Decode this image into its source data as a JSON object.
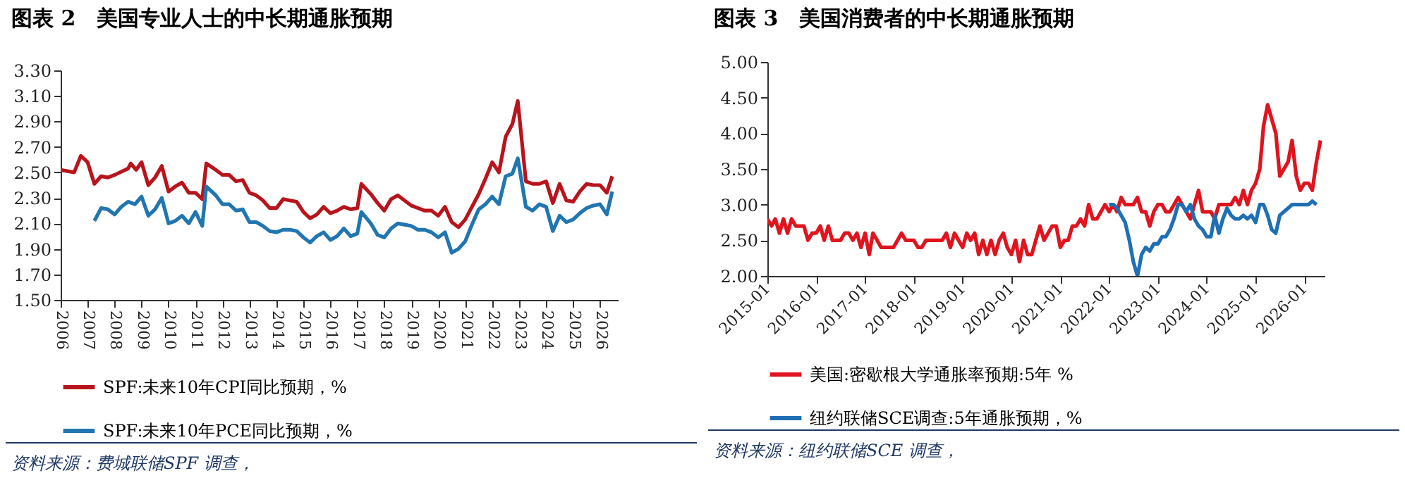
{
  "chart_data": [
    {
      "type": "line",
      "title": "图表 2　美国专业人士的中长期通胀预期",
      "annotations": [
        "资料来源：费城联储SPF 调查，"
      ],
      "legend": "bottom",
      "grid": false,
      "marker": "none",
      "line_style": "solid",
      "xlim": [
        2006,
        2026.66
      ],
      "xticks": [
        2006,
        2007,
        2008,
        2009,
        2010,
        2011,
        2012,
        2013,
        2014,
        2015,
        2016,
        2017,
        2018,
        2019,
        2020,
        2021,
        2022,
        2023,
        2024,
        2025,
        2026
      ],
      "ylim": [
        1.5,
        3.3
      ],
      "yticks": [
        {
          "value": 1.5,
          "label": "1.50"
        },
        {
          "value": 1.7,
          "label": "1.70"
        },
        {
          "value": 1.9,
          "label": "1.90"
        },
        {
          "value": 2.1,
          "label": "2.10"
        },
        {
          "value": 2.3,
          "label": "2.30"
        },
        {
          "value": 2.5,
          "label": "2.50"
        },
        {
          "value": 2.7,
          "label": "2.70"
        },
        {
          "value": 2.9,
          "label": "2.90"
        },
        {
          "value": 3.1,
          "label": "3.10"
        },
        {
          "value": 3.3,
          "label": "3.30"
        }
      ],
      "series": [
        {
          "name": "SPF:未来10年CPI同比预期，%",
          "color": "#b8141c",
          "x": [
            2006,
            2006.5,
            2006.75,
            2007,
            2007.25,
            2007.5,
            2007.75,
            2008,
            2008.5,
            2008.6,
            2008.8,
            2009,
            2009.25,
            2009.5,
            2009.75,
            2010,
            2010.25,
            2010.5,
            2010.75,
            2011,
            2011.25,
            2011.4,
            2011.75,
            2012,
            2012.25,
            2012.5,
            2012.75,
            2013,
            2013.25,
            2013.5,
            2013.75,
            2014,
            2014.25,
            2014.5,
            2014.75,
            2015,
            2015.25,
            2015.5,
            2015.75,
            2016,
            2016.25,
            2016.5,
            2016.75,
            2017,
            2017.15,
            2017.5,
            2017.75,
            2018,
            2018.25,
            2018.5,
            2018.75,
            2019,
            2019.25,
            2019.5,
            2019.75,
            2020,
            2020.25,
            2020.5,
            2020.75,
            2021,
            2021.5,
            2021.75,
            2022,
            2022.25,
            2022.5,
            2022.75,
            2022.95,
            2023.25,
            2023.5,
            2023.75,
            2024,
            2024.25,
            2024.5,
            2024.75,
            2025,
            2025.25,
            2025.5,
            2025.75,
            2026,
            2026.25,
            2026.45
          ],
          "values": [
            2.52,
            2.5,
            2.63,
            2.58,
            2.41,
            2.47,
            2.46,
            2.48,
            2.53,
            2.57,
            2.52,
            2.58,
            2.4,
            2.46,
            2.55,
            2.35,
            2.39,
            2.42,
            2.34,
            2.34,
            2.29,
            2.57,
            2.52,
            2.48,
            2.48,
            2.43,
            2.44,
            2.34,
            2.32,
            2.28,
            2.22,
            2.22,
            2.29,
            2.28,
            2.27,
            2.19,
            2.14,
            2.17,
            2.23,
            2.18,
            2.2,
            2.23,
            2.21,
            2.22,
            2.41,
            2.33,
            2.26,
            2.2,
            2.29,
            2.32,
            2.28,
            2.24,
            2.22,
            2.2,
            2.2,
            2.16,
            2.23,
            2.11,
            2.07,
            2.13,
            2.33,
            2.45,
            2.58,
            2.5,
            2.78,
            2.88,
            3.06,
            2.43,
            2.41,
            2.41,
            2.43,
            2.26,
            2.41,
            2.28,
            2.27,
            2.35,
            2.41,
            2.4,
            2.4,
            2.34,
            2.47
          ]
        },
        {
          "name": "SPF:未来10年PCE同比预期，%",
          "color": "#2176b0",
          "x": [
            2007.25,
            2007.5,
            2007.75,
            2008,
            2008.25,
            2008.5,
            2008.75,
            2009,
            2009.25,
            2009.5,
            2009.75,
            2010,
            2010.25,
            2010.5,
            2010.75,
            2011,
            2011.25,
            2011.4,
            2011.75,
            2012,
            2012.25,
            2012.5,
            2012.75,
            2013,
            2013.25,
            2013.5,
            2013.75,
            2014,
            2014.25,
            2014.5,
            2014.75,
            2015,
            2015.25,
            2015.5,
            2015.75,
            2016,
            2016.25,
            2016.5,
            2016.75,
            2017,
            2017.15,
            2017.5,
            2017.75,
            2018,
            2018.25,
            2018.5,
            2018.75,
            2019,
            2019.25,
            2019.5,
            2019.75,
            2020,
            2020.25,
            2020.5,
            2020.75,
            2021,
            2021.25,
            2021.5,
            2021.75,
            2022,
            2022.25,
            2022.5,
            2022.75,
            2022.95,
            2023.25,
            2023.5,
            2023.75,
            2024,
            2024.25,
            2024.5,
            2024.75,
            2025,
            2025.25,
            2025.5,
            2025.75,
            2026,
            2026.25,
            2026.45
          ],
          "values": [
            2.12,
            2.22,
            2.21,
            2.17,
            2.23,
            2.27,
            2.25,
            2.31,
            2.16,
            2.21,
            2.3,
            2.1,
            2.12,
            2.16,
            2.1,
            2.19,
            2.08,
            2.39,
            2.32,
            2.25,
            2.25,
            2.2,
            2.21,
            2.11,
            2.11,
            2.08,
            2.04,
            2.03,
            2.05,
            2.05,
            2.04,
            1.99,
            1.95,
            2,
            2.03,
            1.97,
            2,
            2.06,
            2,
            2.02,
            2.19,
            2.1,
            2.01,
            1.99,
            2.06,
            2.1,
            2.09,
            2.08,
            2.05,
            2.05,
            2.03,
            1.99,
            2.03,
            1.87,
            1.9,
            1.96,
            2.09,
            2.21,
            2.25,
            2.31,
            2.25,
            2.47,
            2.49,
            2.61,
            2.23,
            2.2,
            2.25,
            2.23,
            2.04,
            2.16,
            2.11,
            2.13,
            2.18,
            2.22,
            2.24,
            2.25,
            2.17,
            2.35
          ]
        }
      ]
    },
    {
      "type": "line",
      "title": "图表 3　美国消费者的中长期通胀预期",
      "annotations": [
        "资料来源：纽约联储SCE 调查，"
      ],
      "legend": "bottom",
      "grid": false,
      "marker": "none",
      "line_style": "solid",
      "xlim": [
        "2015-01",
        "2026-06"
      ],
      "xticks": [
        "2015-01",
        "2016-01",
        "2017-01",
        "2018-01",
        "2019-01",
        "2020-01",
        "2021-01",
        "2022-01",
        "2023-01",
        "2024-01",
        "2025-01",
        "2026-01"
      ],
      "ylim": [
        2,
        5
      ],
      "yticks": [
        {
          "value": 2,
          "label": "2.00"
        },
        {
          "value": 2.5,
          "label": "2.50"
        },
        {
          "value": 3,
          "label": "3.00"
        },
        {
          "value": 3.5,
          "label": "3.50"
        },
        {
          "value": 4,
          "label": "4.00"
        },
        {
          "value": 4.5,
          "label": "4.50"
        },
        {
          "value": 5,
          "label": "5.00"
        }
      ],
      "x": [
        "2015-01",
        "2015-02",
        "2015-03",
        "2015-04",
        "2015-05",
        "2015-06",
        "2015-07",
        "2015-08",
        "2015-09",
        "2015-10",
        "2015-11",
        "2015-12",
        "2016-01",
        "2016-02",
        "2016-03",
        "2016-04",
        "2016-05",
        "2016-06",
        "2016-07",
        "2016-08",
        "2016-09",
        "2016-10",
        "2016-11",
        "2016-12",
        "2017-01",
        "2017-02",
        "2017-03",
        "2017-04",
        "2017-05",
        "2017-06",
        "2017-07",
        "2017-08",
        "2017-09",
        "2017-10",
        "2017-11",
        "2017-12",
        "2018-01",
        "2018-02",
        "2018-03",
        "2018-04",
        "2018-05",
        "2018-06",
        "2018-07",
        "2018-08",
        "2018-09",
        "2018-10",
        "2018-11",
        "2018-12",
        "2019-01",
        "2019-02",
        "2019-03",
        "2019-04",
        "2019-05",
        "2019-06",
        "2019-07",
        "2019-08",
        "2019-09",
        "2019-10",
        "2019-11",
        "2019-12",
        "2020-01",
        "2020-02",
        "2020-03",
        "2020-04",
        "2020-05",
        "2020-06",
        "2020-07",
        "2020-08",
        "2020-09",
        "2020-10",
        "2020-11",
        "2020-12",
        "2021-01",
        "2021-02",
        "2021-03",
        "2021-04",
        "2021-05",
        "2021-06",
        "2021-07",
        "2021-08",
        "2021-09",
        "2021-10",
        "2021-11",
        "2021-12",
        "2022-01",
        "2022-02",
        "2022-03",
        "2022-04",
        "2022-05",
        "2022-06",
        "2022-07",
        "2022-08",
        "2022-09",
        "2022-10",
        "2022-11",
        "2022-12",
        "2023-01",
        "2023-02",
        "2023-03",
        "2023-04",
        "2023-05",
        "2023-06",
        "2023-07",
        "2023-08",
        "2023-09",
        "2023-10",
        "2023-11",
        "2023-12",
        "2024-01",
        "2024-02",
        "2024-03",
        "2024-04",
        "2024-05",
        "2024-06",
        "2024-07",
        "2024-08",
        "2024-09",
        "2024-10",
        "2024-11",
        "2024-12",
        "2025-01",
        "2025-02",
        "2025-03",
        "2025-04",
        "2025-05",
        "2025-06",
        "2025-07",
        "2025-08",
        "2025-09",
        "2025-10",
        "2025-11",
        "2025-12",
        "2026-01",
        "2026-02",
        "2026-03",
        "2026-04",
        "2026-05"
      ],
      "series": [
        {
          "name": "美国:密歇根大学通胀率预期:5年 %",
          "color": "#e0141e",
          "values": [
            2.8,
            2.7,
            2.8,
            2.6,
            2.8,
            2.6,
            2.8,
            2.7,
            2.7,
            2.7,
            2.5,
            2.6,
            2.6,
            2.7,
            2.5,
            2.7,
            2.5,
            2.5,
            2.5,
            2.6,
            2.6,
            2.5,
            2.6,
            2.4,
            2.6,
            2.3,
            2.6,
            2.5,
            2.4,
            2.4,
            2.4,
            2.4,
            2.5,
            2.6,
            2.5,
            2.5,
            2.5,
            2.4,
            2.4,
            2.5,
            2.5,
            2.5,
            2.5,
            2.5,
            2.6,
            2.4,
            2.6,
            2.5,
            2.4,
            2.6,
            2.5,
            2.6,
            2.3,
            2.5,
            2.3,
            2.5,
            2.3,
            2.5,
            2.6,
            2.4,
            2.3,
            2.5,
            2.2,
            2.5,
            2.3,
            2.3,
            2.5,
            2.7,
            2.5,
            2.6,
            2.7,
            2.7,
            2.4,
            2.5,
            2.5,
            2.7,
            2.7,
            2.8,
            2.7,
            3,
            2.8,
            2.8,
            2.9,
            3,
            2.9,
            3,
            2.9,
            3.1,
            3,
            3,
            3,
            3.1,
            2.9,
            2.9,
            2.7,
            2.9,
            3,
            3,
            2.9,
            2.9,
            3,
            3.1,
            3,
            2.9,
            2.8,
            3,
            3.2,
            2.9,
            2.9,
            2.9,
            2.8,
            3,
            3,
            3,
            3,
            3.1,
            3,
            3.2,
            3,
            3.2,
            3.3,
            3.5,
            4.1,
            4.4,
            4.2,
            4,
            3.4,
            3.5,
            3.6,
            3.9,
            3.4,
            3.2,
            3.3,
            3.3,
            3.2,
            3.6,
            3.9
          ]
        },
        {
          "name": "纽约联储SCE调查:5年通胀预期，%",
          "color": "#1f6fb4",
          "values": [
            null,
            null,
            null,
            null,
            null,
            null,
            null,
            null,
            null,
            null,
            null,
            null,
            null,
            null,
            null,
            null,
            null,
            null,
            null,
            null,
            null,
            null,
            null,
            null,
            null,
            null,
            null,
            null,
            null,
            null,
            null,
            null,
            null,
            null,
            null,
            null,
            null,
            null,
            null,
            null,
            null,
            null,
            null,
            null,
            null,
            null,
            null,
            null,
            null,
            null,
            null,
            null,
            null,
            null,
            null,
            null,
            null,
            null,
            null,
            null,
            null,
            null,
            null,
            null,
            null,
            null,
            null,
            null,
            null,
            null,
            null,
            null,
            null,
            null,
            null,
            null,
            null,
            null,
            null,
            null,
            null,
            null,
            null,
            null,
            3,
            3,
            2.95,
            2.85,
            2.75,
            2.5,
            2.2,
            2,
            2.3,
            2.4,
            2.35,
            2.45,
            2.45,
            2.55,
            2.55,
            2.65,
            2.8,
            3,
            3,
            2.9,
            3,
            2.8,
            2.7,
            2.65,
            2.55,
            2.55,
            2.85,
            2.6,
            2.8,
            2.95,
            2.85,
            2.8,
            2.8,
            2.85,
            2.8,
            2.85,
            2.75,
            3,
            3,
            2.85,
            2.65,
            2.6,
            2.85,
            2.9,
            2.95,
            3,
            3,
            3,
            3,
            3,
            3.05,
            3,
            null
          ]
        }
      ]
    }
  ]
}
